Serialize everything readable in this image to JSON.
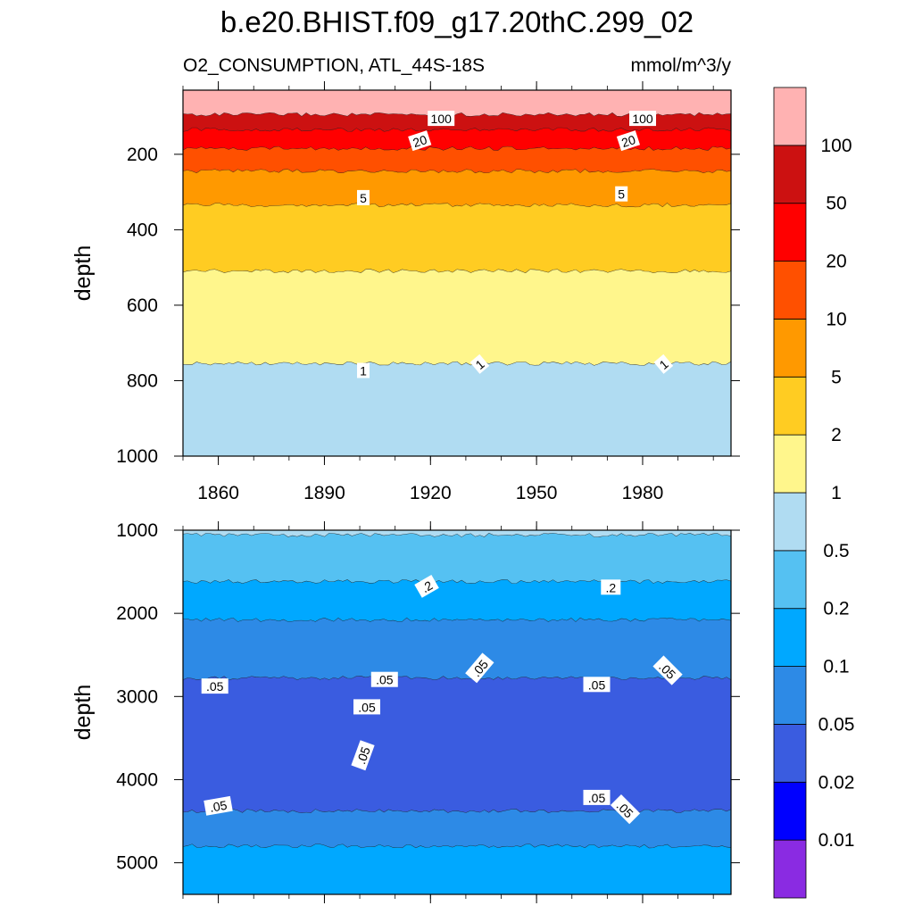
{
  "chart_data": {
    "type": "filled-contour",
    "title": "b.e20.BHIST.f09_g17.20thC.299_02",
    "subtitle_left": "O2_CONSUMPTION, ATL_44S-18S",
    "subtitle_right": "mmol/m^3/y",
    "xlabel": "",
    "ylabel": "depth",
    "colorbar": {
      "levels": [
        "0.01",
        "0.02",
        "0.05",
        "0.1",
        "0.2",
        "0.5",
        "1",
        "2",
        "5",
        "10",
        "20",
        "50",
        "100"
      ],
      "colors": [
        "#8a2be2",
        "#0000ff",
        "#3a5ce0",
        "#2d8ae6",
        "#00a8ff",
        "#55c1f2",
        "#b0dcf2",
        "#fff68c",
        "#ffcc22",
        "#ff9900",
        "#ff5000",
        "#ff0000",
        "#cc1111",
        "#ffb2b2"
      ]
    },
    "panels": [
      {
        "name": "upper",
        "xlim": [
          1850,
          2005
        ],
        "ylim": [
          1000,
          30
        ],
        "x_ticks": [
          "1860",
          "1890",
          "1920",
          "1950",
          "1980"
        ],
        "x_tick_values": [
          1860,
          1890,
          1920,
          1950,
          1980
        ],
        "y_ticks": [
          "200",
          "400",
          "600",
          "800",
          "1000"
        ],
        "y_tick_values": [
          200,
          400,
          600,
          800,
          1000
        ],
        "bands": [
          {
            "from": 30,
            "to": 95,
            "color": "#ffb2b2",
            "range": ">100"
          },
          {
            "from": 95,
            "to": 135,
            "color": "#cc1111",
            "range": "50-100"
          },
          {
            "from": 135,
            "to": 185,
            "color": "#ff0000",
            "range": "20-50"
          },
          {
            "from": 185,
            "to": 245,
            "color": "#ff5000",
            "range": "10-20"
          },
          {
            "from": 245,
            "to": 335,
            "color": "#ff9900",
            "range": "5-10"
          },
          {
            "from": 335,
            "to": 510,
            "color": "#ffcc22",
            "range": "2-5"
          },
          {
            "from": 510,
            "to": 755,
            "color": "#fff68c",
            "range": "1-2"
          },
          {
            "from": 755,
            "to": 1000,
            "color": "#b0dcf2",
            "range": "0.5-1"
          }
        ],
        "contour_labels": [
          {
            "text": "100",
            "x": 1923,
            "y": 106,
            "angle": 0
          },
          {
            "text": "100",
            "x": 1980,
            "y": 106,
            "angle": 0
          },
          {
            "text": "20",
            "x": 1917,
            "y": 165,
            "angle": -18
          },
          {
            "text": "20",
            "x": 1976,
            "y": 165,
            "angle": -18
          },
          {
            "text": "5",
            "x": 1901,
            "y": 316,
            "angle": 0
          },
          {
            "text": "5",
            "x": 1974,
            "y": 306,
            "angle": 0
          },
          {
            "text": "1",
            "x": 1901,
            "y": 774,
            "angle": 0
          },
          {
            "text": "1",
            "x": 1934,
            "y": 757,
            "angle": -40
          },
          {
            "text": "1",
            "x": 1986,
            "y": 757,
            "angle": -40
          }
        ]
      },
      {
        "name": "lower",
        "xlim": [
          1850,
          2005
        ],
        "ylim": [
          5380,
          1000
        ],
        "x_ticks": [],
        "x_tick_values": [
          1860,
          1890,
          1920,
          1950,
          1980
        ],
        "y_ticks": [
          "1000",
          "2000",
          "3000",
          "4000",
          "5000"
        ],
        "y_tick_values": [
          1000,
          2000,
          3000,
          4000,
          5000
        ],
        "bands": [
          {
            "from": 1000,
            "to": 1060,
            "color": "#b0dcf2",
            "range": "0.5-1"
          },
          {
            "from": 1060,
            "to": 1620,
            "color": "#55c1f2",
            "range": "0.2-0.5"
          },
          {
            "from": 1620,
            "to": 2080,
            "color": "#00a8ff",
            "range": "0.1-0.2"
          },
          {
            "from": 2080,
            "to": 2780,
            "color": "#2d8ae6",
            "range": "0.05-0.1"
          },
          {
            "from": 2780,
            "to": 4380,
            "color": "#3a5ce0",
            "range": "0.02-0.05"
          },
          {
            "from": 4380,
            "to": 4800,
            "color": "#2d8ae6",
            "range": "0.05-0.1"
          },
          {
            "from": 4800,
            "to": 5380,
            "color": "#00a8ff",
            "range": "0.1-0.2"
          }
        ],
        "contour_labels": [
          {
            "text": ".2",
            "x": 1919,
            "y": 1680,
            "angle": -30
          },
          {
            "text": ".2",
            "x": 1971,
            "y": 1690,
            "angle": 0
          },
          {
            "text": ".05",
            "x": 1907,
            "y": 2800,
            "angle": 0
          },
          {
            "text": ".05",
            "x": 1902,
            "y": 3130,
            "angle": 0
          },
          {
            "text": ".05",
            "x": 1901,
            "y": 3710,
            "angle": -70
          },
          {
            "text": ".05",
            "x": 1859,
            "y": 2880,
            "angle": 0
          },
          {
            "text": ".05",
            "x": 1860,
            "y": 4320,
            "angle": -10
          },
          {
            "text": ".05",
            "x": 1934,
            "y": 2660,
            "angle": -50
          },
          {
            "text": ".05",
            "x": 1967,
            "y": 2860,
            "angle": 0
          },
          {
            "text": ".05",
            "x": 1967,
            "y": 4220,
            "angle": 0
          },
          {
            "text": ".05",
            "x": 1987,
            "y": 2690,
            "angle": 45
          },
          {
            "text": ".05",
            "x": 1975,
            "y": 4360,
            "angle": 45
          }
        ]
      }
    ]
  }
}
